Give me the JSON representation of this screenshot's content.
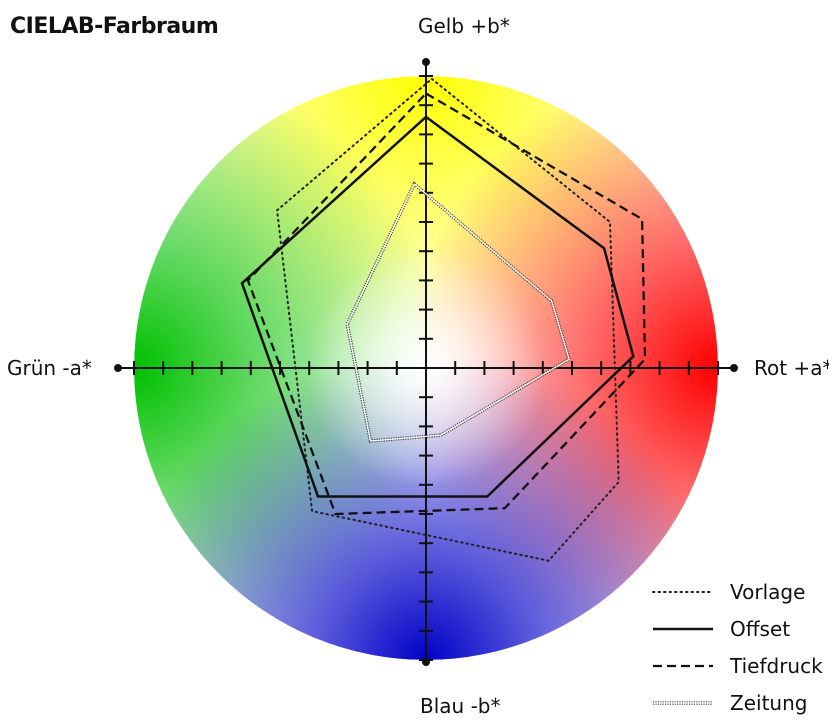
{
  "title": "CIELAB-Farbraum",
  "axes": {
    "top": "Gelb +b*",
    "bottom": "Blau -b*",
    "left": "Grün -a*",
    "right": "Rot +a*"
  },
  "colors": {
    "yellow": "#ffff00",
    "red": "#ff0000",
    "green": "#00c000",
    "blue": "#0000c8",
    "white": "#ffffff"
  },
  "chart_data": {
    "type": "polygon-overlay",
    "title": "CIELAB-Farbraum",
    "xlabel_positive": "Rot +a*",
    "xlabel_negative": "Grün -a*",
    "ylabel_positive": "Gelb +b*",
    "ylabel_negative": "Blau -b*",
    "xlim": [
      -10,
      10
    ],
    "ylim": [
      -10,
      10
    ],
    "tick_step": 1,
    "legend_position": "bottom-right",
    "series": [
      {
        "name": "Vorlage",
        "style": "dotted",
        "points": [
          [
            0.2,
            9.9
          ],
          [
            6.3,
            5.0
          ],
          [
            6.6,
            -3.9
          ],
          [
            4.2,
            -6.6
          ],
          [
            -3.9,
            -4.9
          ],
          [
            -5.1,
            5.4
          ]
        ]
      },
      {
        "name": "Offset",
        "style": "solid",
        "points": [
          [
            0.0,
            8.6
          ],
          [
            6.1,
            4.1
          ],
          [
            7.1,
            0.4
          ],
          [
            2.1,
            -4.4
          ],
          [
            -3.7,
            -4.4
          ],
          [
            -6.3,
            2.9
          ]
        ]
      },
      {
        "name": "Tiefdruck",
        "style": "dashed",
        "points": [
          [
            0.0,
            9.4
          ],
          [
            7.4,
            5.1
          ],
          [
            7.5,
            0.3
          ],
          [
            2.7,
            -4.8
          ],
          [
            -3.1,
            -5.0
          ],
          [
            -6.1,
            3.0
          ]
        ]
      },
      {
        "name": "Zeitung",
        "style": "hatched",
        "points": [
          [
            -0.4,
            6.3
          ],
          [
            4.3,
            2.3
          ],
          [
            4.9,
            0.3
          ],
          [
            0.5,
            -2.3
          ],
          [
            -1.9,
            -2.5
          ],
          [
            -2.7,
            1.5
          ]
        ]
      }
    ]
  }
}
